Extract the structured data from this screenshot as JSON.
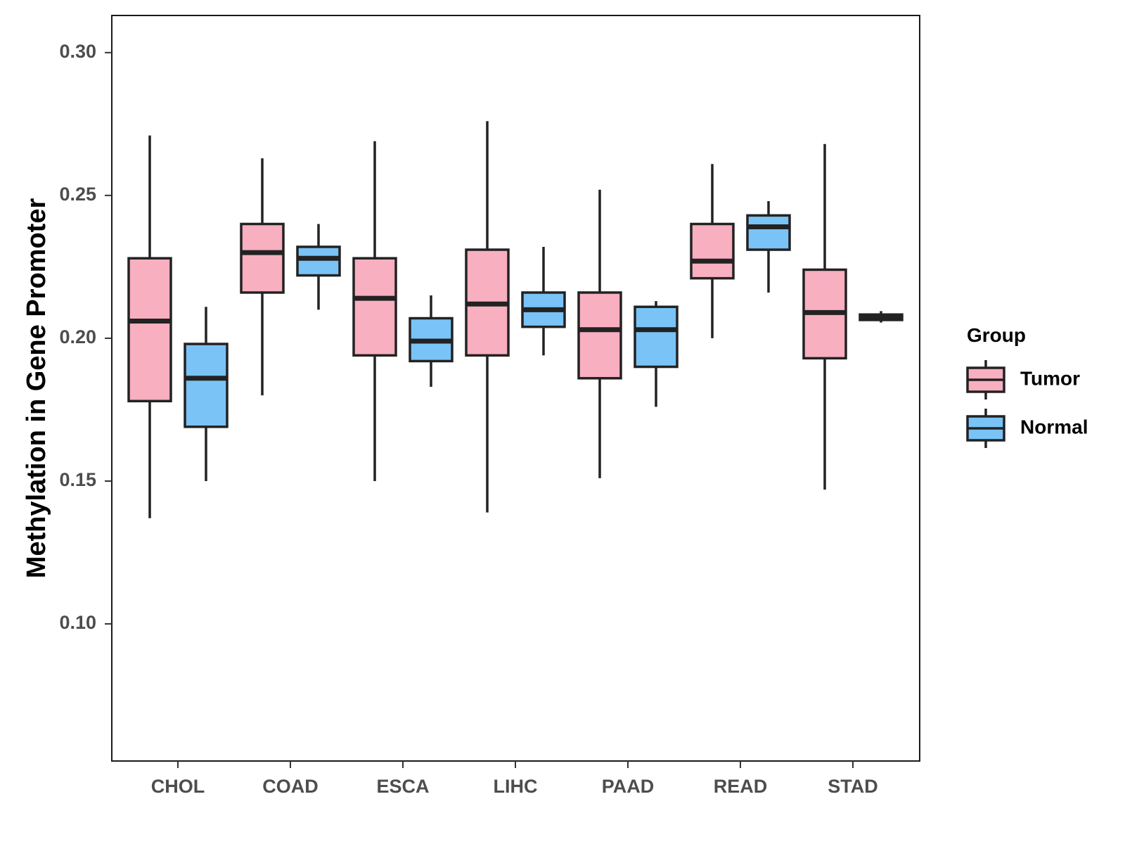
{
  "chart_data": {
    "type": "boxplot",
    "title": "",
    "xlabel": "",
    "ylabel": "Methylation in Gene Promoter",
    "ylim": [
      0.052,
      0.313
    ],
    "y_ticks": [
      0.1,
      0.15,
      0.2,
      0.25,
      0.3
    ],
    "y_tick_labels": [
      "0.10",
      "0.15",
      "0.20",
      "0.25",
      "0.30"
    ],
    "grid": false,
    "categories": [
      "CHOL",
      "COAD",
      "ESCA",
      "LIHC",
      "PAAD",
      "READ",
      "STAD"
    ],
    "legend": {
      "title": "Group",
      "placement": "right"
    },
    "series": [
      {
        "name": "Tumor",
        "color": "#f8afc0",
        "boxes": [
          {
            "min": 0.137,
            "q1": 0.178,
            "median": 0.206,
            "q3": 0.228,
            "max": 0.271
          },
          {
            "min": 0.18,
            "q1": 0.216,
            "median": 0.23,
            "q3": 0.24,
            "max": 0.263
          },
          {
            "min": 0.15,
            "q1": 0.194,
            "median": 0.214,
            "q3": 0.228,
            "max": 0.269
          },
          {
            "min": 0.139,
            "q1": 0.194,
            "median": 0.212,
            "q3": 0.231,
            "max": 0.276
          },
          {
            "min": 0.151,
            "q1": 0.186,
            "median": 0.203,
            "q3": 0.216,
            "max": 0.252
          },
          {
            "min": 0.2,
            "q1": 0.221,
            "median": 0.227,
            "q3": 0.24,
            "max": 0.261
          },
          {
            "min": 0.147,
            "q1": 0.193,
            "median": 0.209,
            "q3": 0.224,
            "max": 0.268
          }
        ]
      },
      {
        "name": "Normal",
        "color": "#79c3f6",
        "boxes": [
          {
            "min": 0.15,
            "q1": 0.169,
            "median": 0.186,
            "q3": 0.198,
            "max": 0.211
          },
          {
            "min": 0.21,
            "q1": 0.222,
            "median": 0.228,
            "q3": 0.232,
            "max": 0.24
          },
          {
            "min": 0.183,
            "q1": 0.192,
            "median": 0.199,
            "q3": 0.207,
            "max": 0.215
          },
          {
            "min": 0.194,
            "q1": 0.204,
            "median": 0.21,
            "q3": 0.216,
            "max": 0.232
          },
          {
            "min": 0.176,
            "q1": 0.19,
            "median": 0.203,
            "q3": 0.211,
            "max": 0.213
          },
          {
            "min": 0.216,
            "q1": 0.231,
            "median": 0.239,
            "q3": 0.243,
            "max": 0.248
          },
          {
            "min": 0.2055,
            "q1": 0.2064,
            "median": 0.2072,
            "q3": 0.2083,
            "max": 0.2095
          }
        ]
      }
    ]
  }
}
